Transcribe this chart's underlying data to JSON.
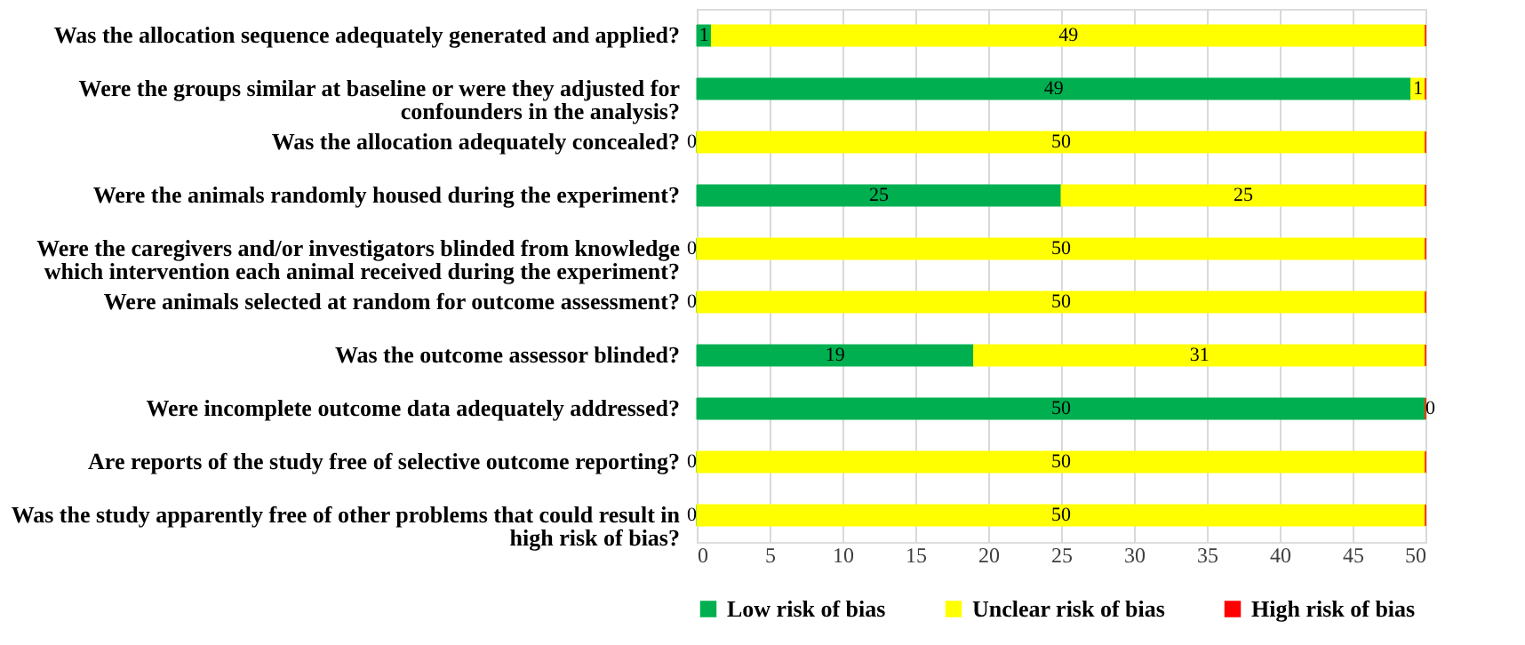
{
  "chart_data": {
    "type": "bar",
    "orientation": "horizontal",
    "stacked": true,
    "categories": [
      "Was the allocation sequence adequately generated and applied?",
      "Were the groups similar at baseline or were they adjusted for confounders in the analysis?",
      "Was the allocation adequately concealed?",
      "Were the animals randomly housed during the experiment?",
      "Were the caregivers and/or investigators blinded from knowledge which intervention each animal received during the experiment?",
      "Were animals selected at random for outcome assessment?",
      "Was the outcome assessor blinded?",
      "Were incomplete outcome data adequately addressed?",
      "Are reports of the study free of selective outcome reporting?",
      "Was the study apparently free of other problems that could result in high risk of bias?"
    ],
    "series": [
      {
        "name": "Low risk of bias",
        "color": "#00b050",
        "values": [
          1,
          49,
          0,
          25,
          0,
          0,
          19,
          50,
          0,
          0
        ],
        "value_labels": [
          "1",
          "49",
          "0",
          "25",
          "0",
          "0",
          "19",
          "50",
          "0",
          "0"
        ]
      },
      {
        "name": "Unclear risk of bias",
        "color": "#ffff00",
        "values": [
          49,
          1,
          50,
          25,
          50,
          50,
          31,
          0,
          50,
          50
        ],
        "value_labels": [
          "49",
          "1",
          "50",
          "25",
          "50",
          "50",
          "31",
          "0",
          "50",
          "50"
        ]
      },
      {
        "name": "High risk of bias",
        "color": "#ff0000",
        "values": [
          0,
          0,
          0,
          0,
          0,
          0,
          0,
          0,
          0,
          0
        ],
        "value_labels": [
          null,
          null,
          null,
          null,
          null,
          null,
          null,
          null,
          null,
          null
        ]
      }
    ],
    "xlim": [
      0,
      50
    ],
    "xticks": [
      0,
      5,
      10,
      15,
      20,
      25,
      30,
      35,
      40,
      45,
      50
    ],
    "grid": "x",
    "legend": "bottom"
  }
}
